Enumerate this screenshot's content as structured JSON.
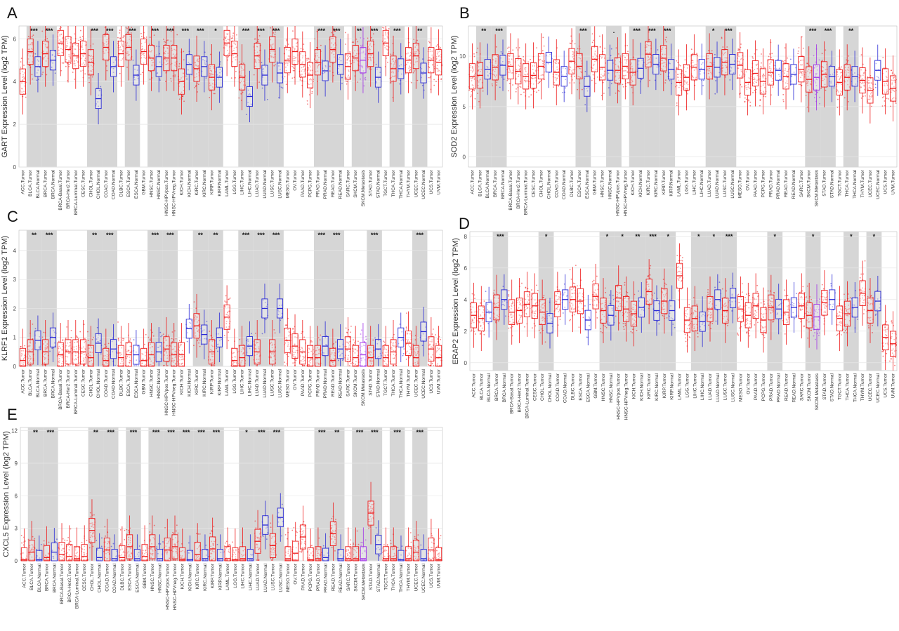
{
  "colors": {
    "tumor": "#ee1c1c",
    "normal": "#2a2ad6",
    "metastasis": "#a030e8",
    "shade": "#d6d6d6"
  },
  "chart_data": [
    {
      "letter": "A",
      "type": "box",
      "ylabel": "GART Expression Level (log2 TPM)",
      "ylim": [
        0,
        6.6
      ],
      "yticks": [
        0,
        2,
        4,
        6
      ],
      "categories": [
        "ACC.Tumor",
        "BLCA.Tumor",
        "BLCA.Normal",
        "BRCA.Tumor",
        "BRCA.Normal",
        "BRCA-Basal.Tumor",
        "BRCA-Her2.Tumor",
        "BRCA-Luminal.Tumor",
        "CESC.Tumor",
        "CHOL.Tumor",
        "CHOL.Normal",
        "COAD.Tumor",
        "COAD.Normal",
        "DLBC.Tumor",
        "ESCA.Tumor",
        "ESCA.Normal",
        "GBM.Tumor",
        "HNSC.Tumor",
        "HNSC.Normal",
        "HNSC-HPVpos.Tumor",
        "HNSC-HPVneg.Tumor",
        "KICH.Tumor",
        "KICH.Normal",
        "KIRC.Tumor",
        "KIRC.Normal",
        "KIRP.Tumor",
        "KIRP.Normal",
        "LAML.Tumor",
        "LGG.Tumor",
        "LIHC.Tumor",
        "LIHC.Normal",
        "LUAD.Tumor",
        "LUAD.Normal",
        "LUSC.Tumor",
        "LUSC.Normal",
        "MESO.Tumor",
        "OV.Tumor",
        "PAAD.Tumor",
        "PCPG.Tumor",
        "PRAD.Tumor",
        "PRAD.Normal",
        "READ.Tumor",
        "READ.Normal",
        "SARC.Tumor",
        "SKCM.Tumor",
        "SKCM.Metastasis",
        "STAD.Tumor",
        "STAD.Normal",
        "TGCT.Tumor",
        "THCA.Tumor",
        "THCA.Normal",
        "THYM.Tumor",
        "UCEC.Tumor",
        "UCEC.Normal",
        "UCS.Tumor",
        "UVM.Tumor"
      ],
      "medians": [
        4.0,
        5.4,
        4.7,
        5.3,
        5.0,
        5.8,
        5.5,
        5.2,
        5.3,
        4.9,
        3.2,
        5.6,
        4.7,
        5.3,
        5.6,
        4.3,
        5.4,
        5.1,
        4.7,
        5.1,
        5.1,
        4.0,
        4.8,
        4.6,
        4.7,
        4.2,
        4.2,
        5.8,
        5.3,
        4.2,
        3.3,
        5.2,
        4.3,
        5.5,
        4.4,
        5.0,
        5.4,
        4.8,
        4.3,
        4.9,
        4.5,
        5.5,
        4.8,
        4.7,
        5.1,
        5.0,
        5.3,
        4.2,
        5.8,
        4.6,
        4.6,
        5.0,
        5.2,
        4.4,
        5.0,
        4.9
      ],
      "stars": [
        "",
        "***",
        "",
        "***",
        "",
        "",
        "",
        "",
        "",
        "***",
        "",
        "***",
        "",
        "",
        "***",
        "",
        "",
        "***",
        "",
        "***",
        "",
        "***",
        "",
        "***",
        "",
        "*",
        "",
        "",
        "",
        "***",
        "",
        "***",
        "",
        "***",
        "",
        "",
        "",
        "",
        "",
        "***",
        "",
        "***",
        "",
        "",
        "**",
        "",
        "***",
        "",
        "",
        "***",
        "",
        "",
        "**",
        "",
        "",
        ""
      ]
    },
    {
      "letter": "B",
      "type": "box",
      "ylabel": "SOD2 Expression Level (log2 TPM)",
      "ylim": [
        -1,
        13
      ],
      "yticks": [
        0,
        5,
        10
      ],
      "categories": [
        "ACC.Tumor",
        "BLCA.Tumor",
        "BLCA.Normal",
        "BRCA.Tumor",
        "BRCA.Normal",
        "BRCA-Basal.Tumor",
        "BRCA-Her2.Tumor",
        "BRCA-Luminal.Tumor",
        "CESC.Tumor",
        "CHOL.Tumor",
        "CHOL.Normal",
        "COAD.Tumor",
        "COAD.Normal",
        "DLBC.Tumor",
        "ESCA.Tumor",
        "ESCA.Normal",
        "GBM.Tumor",
        "HNSC.Tumor",
        "HNSC.Normal",
        "HNSC-HPVpos.Tumor",
        "HNSC-HPVneg.Tumor",
        "KICH.Tumor",
        "KICH.Normal",
        "KIRC.Tumor",
        "KIRC.Normal",
        "KIRP.Tumor",
        "KIRP.Normal",
        "LAML.Tumor",
        "LGG.Tumor",
        "LIHC.Tumor",
        "LIHC.Normal",
        "LUAD.Tumor",
        "LUAD.Normal",
        "LUSC.Tumor",
        "LUSC.Normal",
        "MESO.Tumor",
        "OV.Tumor",
        "PAAD.Tumor",
        "PCPG.Tumor",
        "PRAD.Tumor",
        "PRAD.Normal",
        "READ.Tumor",
        "READ.Normal",
        "SARC.Tumor",
        "SKCM.Tumor",
        "SKCM.Metastasis",
        "STAD.Tumor",
        "STAD.Normal",
        "TGCT.Tumor",
        "THCA.Tumor",
        "THCA.Normal",
        "THYM.Tumor",
        "UCEC.Tumor",
        "UCEC.Normal",
        "UCS.Tumor",
        "UVM.Tumor"
      ],
      "medians": [
        8.0,
        8.1,
        8.7,
        8.9,
        9.1,
        9.0,
        8.5,
        8.0,
        8.1,
        9.0,
        9.4,
        8.4,
        8.0,
        9.5,
        9.0,
        7.0,
        9.7,
        8.9,
        8.6,
        8.6,
        9.0,
        8.4,
        8.8,
        10.2,
        9.2,
        9.8,
        8.7,
        7.4,
        7.9,
        8.9,
        8.7,
        9.0,
        8.9,
        9.4,
        9.2,
        9.1,
        7.4,
        8.3,
        7.5,
        8.4,
        8.6,
        8.0,
        8.2,
        8.7,
        7.7,
        7.9,
        8.2,
        8.0,
        7.4,
        7.9,
        8.0,
        7.6,
        6.6,
        8.6,
        7.5,
        6.8
      ],
      "stars": [
        "",
        "**",
        "",
        "***",
        "",
        "",
        "",
        "",
        "",
        "",
        "",
        "",
        "",
        "",
        "***",
        "",
        "",
        "",
        ".",
        "",
        "",
        "***",
        "",
        "***",
        "",
        "***",
        "",
        "",
        "",
        "",
        "",
        "*",
        "",
        "***",
        "",
        "",
        "",
        "",
        "",
        "",
        "",
        "",
        "",
        "",
        "***",
        "",
        "***",
        "",
        "",
        "**",
        "",
        "",
        "",
        "",
        "",
        ""
      ]
    },
    {
      "letter": "C",
      "type": "box",
      "ylabel": "KLRF1 Expression Level (log2 TPM)",
      "ylim": [
        0,
        4.7
      ],
      "yticks": [
        0,
        1,
        2,
        3,
        4
      ],
      "categories": [
        "ACC.Tumor",
        "BLCA.Tumor",
        "BLCA.Normal",
        "BRCA.Tumor",
        "BRCA.Normal",
        "BRCA-Basal.Tumor",
        "BRCA-Her2.Tumor",
        "BRCA-Luminal.Tumor",
        "CESC.Tumor",
        "CHOL.Tumor",
        "CHOL.Normal",
        "COAD.Tumor",
        "COAD.Normal",
        "DLBC.Tumor",
        "ESCA.Tumor",
        "ESCA.Normal",
        "GBM.Tumor",
        "HNSC.Tumor",
        "HNSC.Normal",
        "HNSC-HPVpos.Tumor",
        "HNSC-HPVneg.Tumor",
        "KICH.Tumor",
        "KICH.Normal",
        "KIRC.Tumor",
        "KIRC.Normal",
        "KIRP.Tumor",
        "KIRP.Normal",
        "LAML.Tumor",
        "LGG.Tumor",
        "LIHC.Tumor",
        "LIHC.Normal",
        "LUAD.Tumor",
        "LUAD.Normal",
        "LUSC.Tumor",
        "LUSC.Normal",
        "MESO.Tumor",
        "OV.Tumor",
        "PAAD.Tumor",
        "PCPG.Tumor",
        "PRAD.Tumor",
        "PRAD.Normal",
        "READ.Tumor",
        "READ.Normal",
        "SARC.Tumor",
        "SKCM.Tumor",
        "SKCM.Metastasis",
        "STAD.Tumor",
        "STAD.Normal",
        "TGCT.Tumor",
        "THCA.Tumor",
        "THCA.Normal",
        "THYM.Tumor",
        "UCEC.Tumor",
        "UCEC.Normal",
        "UCS.Tumor",
        "UVM.Tumor"
      ],
      "medians": [
        0.2,
        0.5,
        0.9,
        0.5,
        1.0,
        0.4,
        0.5,
        0.5,
        0.5,
        0.3,
        0.8,
        0.2,
        0.6,
        0.3,
        0.4,
        0.4,
        0.2,
        0.4,
        0.5,
        0.6,
        0.4,
        0.4,
        1.3,
        1.4,
        1.1,
        0.5,
        1.0,
        1.7,
        0.2,
        0.3,
        0.7,
        0.5,
        2.0,
        0.5,
        2.0,
        0.9,
        0.7,
        0.5,
        0.3,
        0.3,
        0.7,
        0.2,
        0.6,
        0.6,
        0.3,
        0.4,
        0.3,
        0.6,
        0.3,
        0.5,
        1.0,
        0.8,
        0.3,
        1.2,
        0.6,
        0.3
      ],
      "stars": [
        "",
        "**",
        "",
        "***",
        "",
        "",
        "",
        "",
        "",
        "**",
        "",
        "***",
        "",
        "",
        "",
        "",
        "",
        "***",
        "",
        "***",
        "",
        "",
        "",
        "**",
        "",
        "**",
        "",
        "",
        "",
        "***",
        "",
        "***",
        "",
        "***",
        "",
        "",
        "",
        "",
        "",
        "***",
        "",
        "***",
        "",
        "",
        "",
        "",
        "***",
        "",
        "",
        "",
        "",
        "",
        "***",
        "",
        "",
        ""
      ]
    },
    {
      "letter": "D",
      "type": "box",
      "ylabel": "ERAP2 Expression Level (log2 TPM)",
      "ylim": [
        -0.5,
        8.3
      ],
      "yticks": [
        0,
        2,
        4,
        6,
        8
      ],
      "categories": [
        "ACC.Tumor",
        "BLCA.Tumor",
        "BLCA.Normal",
        "BRCA.Tumor",
        "BRCA.Normal",
        "BRCA-Basal.Tumor",
        "BRCA-Her2.Tumor",
        "BRCA-Luminal.Tumor",
        "CESC.Tumor",
        "CHOL.Tumor",
        "CHOL.Normal",
        "COAD.Tumor",
        "COAD.Normal",
        "DLBC.Tumor",
        "ESCA.Tumor",
        "ESCA.Normal",
        "GBM.Tumor",
        "HNSC.Tumor",
        "HNSC.Normal",
        "HNSC-HPVpos.Tumor",
        "HNSC-HPVneg.Tumor",
        "KICH.Tumor",
        "KICH.Normal",
        "KIRC.Tumor",
        "KIRC.Normal",
        "KIRP.Tumor",
        "KIRP.Normal",
        "LAML.Tumor",
        "LGG.Tumor",
        "LIHC.Tumor",
        "LIHC.Normal",
        "LUAD.Tumor",
        "LUAD.Normal",
        "LUSC.Tumor",
        "LUSC.Normal",
        "MESO.Tumor",
        "OV.Tumor",
        "PAAD.Tumor",
        "PCPG.Tumor",
        "PRAD.Tumor",
        "PRAD.Normal",
        "READ.Tumor",
        "READ.Normal",
        "SARC.Tumor",
        "SKCM.Tumor",
        "SKCM.Metastasis",
        "STAD.Tumor",
        "STAD.Normal",
        "TGCT.Tumor",
        "THCA.Tumor",
        "THCA.Normal",
        "THYM.Tumor",
        "UCEC.Tumor",
        "UCEC.Normal",
        "UCS.Tumor",
        "UVM.Tumor"
      ],
      "medians": [
        3.0,
        2.8,
        3.2,
        3.5,
        4.0,
        3.2,
        3.3,
        3.7,
        3.6,
        3.2,
        2.5,
        3.7,
        4.0,
        4.0,
        3.9,
        2.7,
        4.2,
        3.3,
        3.0,
        4.1,
        3.4,
        3.1,
        3.5,
        4.5,
        3.3,
        3.9,
        3.3,
        5.5,
        2.7,
        2.8,
        2.6,
        3.4,
        4.0,
        3.3,
        4.1,
        3.4,
        3.0,
        3.6,
        2.7,
        3.5,
        3.4,
        3.2,
        3.5,
        3.6,
        3.0,
        2.9,
        3.8,
        4.0,
        2.8,
        3.1,
        3.5,
        4.4,
        3.3,
        3.9,
        1.6,
        1.2
      ],
      "stars": [
        "",
        "",
        "",
        "***",
        "",
        "",
        "",
        "",
        "",
        "*",
        "",
        "",
        "",
        "",
        "",
        "",
        "",
        "*",
        "",
        "*",
        "",
        "**",
        "",
        "***",
        "",
        "*",
        "",
        "",
        "",
        "*",
        "",
        "*",
        "",
        "***",
        "",
        "",
        "",
        "",
        "",
        "*",
        "",
        "",
        "",
        "",
        "*",
        "",
        "",
        "",
        "",
        "*",
        "",
        "",
        "*",
        "",
        "",
        ""
      ]
    },
    {
      "letter": "E",
      "type": "box",
      "ylabel": "CXCL5 Expression Level (log2 TPM)",
      "ylim": [
        0,
        12.3
      ],
      "yticks": [
        0,
        3,
        6,
        9,
        12
      ],
      "categories": [
        "ACC.Tumor",
        "BLCA.Tumor",
        "BLCA.Normal",
        "BRCA.Tumor",
        "BRCA.Normal",
        "BRCA-Basal.Tumor",
        "BRCA-Her2.Tumor",
        "BRCA-Luminal.Tumor",
        "CESC.Tumor",
        "CHOL.Tumor",
        "CHOL.Normal",
        "COAD.Tumor",
        "COAD.Normal",
        "DLBC.Tumor",
        "ESCA.Tumor",
        "ESCA.Normal",
        "GBM.Tumor",
        "HNSC.Tumor",
        "HNSC.Normal",
        "HNSC-HPVpos.Tumor",
        "HNSC-HPVneg.Tumor",
        "KICH.Tumor",
        "KICH.Normal",
        "KIRC.Tumor",
        "KIRC.Normal",
        "KIRP.Tumor",
        "KIRP.Normal",
        "LAML.Tumor",
        "LGG.Tumor",
        "LIHC.Tumor",
        "LIHC.Normal",
        "LUAD.Tumor",
        "LUAD.Normal",
        "LUSC.Tumor",
        "LUSC.Normal",
        "MESO.Tumor",
        "OV.Tumor",
        "PAAD.Tumor",
        "PCPG.Tumor",
        "PRAD.Tumor",
        "PRAD.Normal",
        "READ.Tumor",
        "READ.Normal",
        "SARC.Tumor",
        "SKCM.Tumor",
        "SKCM.Metastasis",
        "STAD.Tumor",
        "STAD.Normal",
        "TGCT.Tumor",
        "THCA.Tumor",
        "THCA.Normal",
        "THYM.Tumor",
        "UCEC.Tumor",
        "UCEC.Normal",
        "UCS.Tumor",
        "UVM.Tumor"
      ],
      "medians": [
        0.1,
        0.8,
        0.1,
        0.3,
        0.8,
        0.6,
        0.4,
        0.2,
        0.4,
        2.8,
        0.3,
        1.0,
        0.2,
        0.3,
        1.3,
        0.2,
        0.4,
        1.3,
        0.2,
        1.0,
        1.3,
        0.1,
        0.1,
        0.6,
        0.2,
        1.1,
        0.2,
        0.2,
        0.1,
        0.2,
        0.2,
        1.8,
        3.3,
        1.4,
        4.0,
        0.2,
        0.7,
        2.2,
        0.1,
        0.2,
        0.3,
        2.5,
        0.2,
        0.2,
        0.2,
        0.2,
        4.4,
        1.5,
        0.2,
        0.2,
        0.1,
        0.2,
        0.8,
        0.2,
        1.0,
        0.1
      ],
      "stars": [
        "",
        "**",
        "",
        "***",
        "",
        "",
        "",
        "",
        "",
        "**",
        "",
        "***",
        "",
        "",
        "***",
        "",
        "",
        "***",
        "",
        "***",
        "",
        "***",
        "",
        "***",
        "",
        "***",
        "",
        "",
        "",
        "*",
        "",
        "***",
        "",
        "***",
        "",
        "",
        "",
        "",
        "",
        "***",
        "",
        "**",
        "",
        "",
        "***",
        "",
        "***",
        "",
        "",
        "***",
        "",
        "",
        "***",
        "",
        "",
        ""
      ]
    }
  ]
}
